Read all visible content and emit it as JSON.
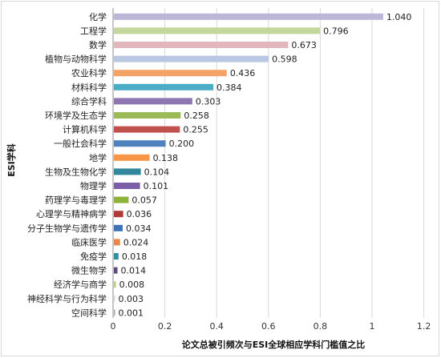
{
  "chart_data": {
    "type": "bar",
    "orientation": "horizontal",
    "title": "",
    "xlabel": "论文总被引频次与ESI全球相应学科门槛值之比",
    "ylabel": "ESI学科",
    "xlim": [
      0,
      1.2
    ],
    "xticks": [
      "0",
      "0.2",
      "0.4",
      "0.6",
      "0.8",
      "1",
      "1.2"
    ],
    "grid": "vertical",
    "legend": "none",
    "categories": [
      "化学",
      "工程学",
      "数学",
      "植物与动物科学",
      "农业科学",
      "材料科学",
      "综合学科",
      "环境学及生态学",
      "计算机科学",
      "一般社会科学",
      "地学",
      "生物及生物化学",
      "物理学",
      "药理学与毒理学",
      "心理学与精神病学",
      "分子生物学与遗传学",
      "临床医学",
      "免疫学",
      "微生物学",
      "经济学与商学",
      "神经科学与行为科学",
      "空间科学"
    ],
    "values": [
      1.04,
      0.796,
      0.673,
      0.598,
      0.436,
      0.384,
      0.303,
      0.258,
      0.255,
      0.2,
      0.138,
      0.104,
      0.101,
      0.057,
      0.036,
      0.034,
      0.024,
      0.018,
      0.014,
      0.008,
      0.003,
      0.001
    ],
    "value_labels": [
      "1.040",
      "0.796",
      "0.673",
      "0.598",
      "0.436",
      "0.384",
      "0.303",
      "0.258",
      "0.255",
      "0.200",
      "0.138",
      "0.104",
      "0.101",
      "0.057",
      "0.036",
      "0.034",
      "0.024",
      "0.018",
      "0.014",
      "0.008",
      "0.003",
      "0.001"
    ],
    "colors": [
      "#bcb7d9",
      "#c3d69b",
      "#e2b7bc",
      "#b9c7e3",
      "#f5a268",
      "#4bacc6",
      "#8e76b2",
      "#9bbb59",
      "#c0504d",
      "#4f81bd",
      "#f79646",
      "#31859c",
      "#7c5fa6",
      "#8eb33a",
      "#b03a36",
      "#3f72b5",
      "#e6894a",
      "#2f8fa6",
      "#604a7b",
      "#b9cf8c",
      "#d9d9d9",
      "#a6a6a6"
    ]
  }
}
